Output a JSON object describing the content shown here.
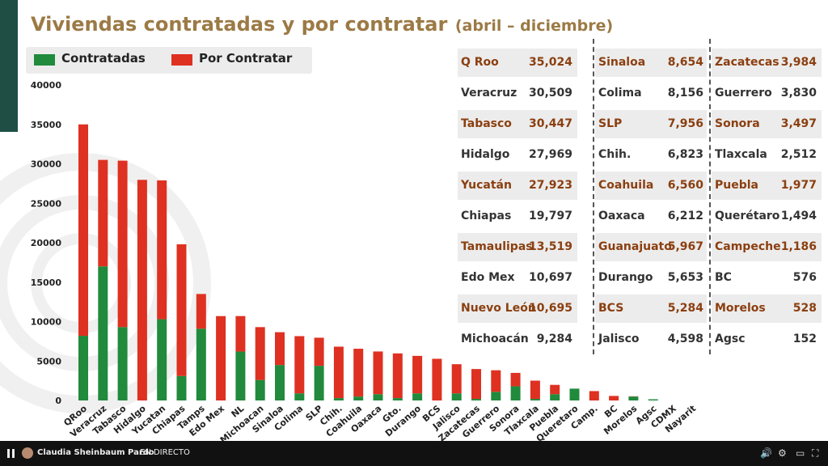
{
  "title": {
    "main": "Viviendas contratadas y por contratar",
    "sub": "(abril – diciembre)"
  },
  "legend": [
    {
      "label": "Contratadas",
      "color": "#218a3c"
    },
    {
      "label": "Por Contratar",
      "color": "#de3121"
    }
  ],
  "chart_data": {
    "type": "bar",
    "stacked": true,
    "ylim": [
      0,
      40000
    ],
    "yticks": [
      0,
      5000,
      10000,
      15000,
      20000,
      25000,
      30000,
      35000,
      40000
    ],
    "categories": [
      "QRoo",
      "Veracruz",
      "Tabasco",
      "Hidalgo",
      "Yucatan",
      "Chiapas",
      "Tamps",
      "Edo Mex",
      "NL",
      "Michoacan",
      "Sinaloa",
      "Colima",
      "SLP",
      "Chih.",
      "Coahuila",
      "Oaxaca",
      "Gto.",
      "Durango",
      "BCS",
      "Jalisco",
      "Zacatecas",
      "Guerrero",
      "Sonora",
      "Tlaxcala",
      "Puebla",
      "Queretaro",
      "Camp.",
      "BC",
      "Morelos",
      "Agsc",
      "CDMX",
      "Nayarit"
    ],
    "series": [
      {
        "name": "Contratadas",
        "color": "#218a3c",
        "values": [
          8200,
          17000,
          9300,
          0,
          10300,
          3100,
          9100,
          0,
          6200,
          2600,
          4500,
          900,
          4400,
          300,
          500,
          800,
          300,
          900,
          0,
          900,
          200,
          1100,
          1800,
          200,
          800,
          1500,
          0,
          0,
          500,
          150,
          0,
          0
        ]
      },
      {
        "name": "Por Contratar",
        "color": "#de3121",
        "values": [
          26800,
          13500,
          21100,
          27969,
          17600,
          16700,
          4400,
          10697,
          4500,
          6700,
          4154,
          7256,
          3556,
          6523,
          6060,
          5412,
          5667,
          4753,
          5284,
          3698,
          3784,
          2730,
          1697,
          2312,
          1177,
          0,
          1186,
          576,
          28,
          0,
          0,
          0
        ]
      }
    ]
  },
  "table": {
    "columns": [
      [
        {
          "state": "Q Roo",
          "value": "35,024",
          "highlight": true
        },
        {
          "state": "Veracruz",
          "value": "30,509",
          "highlight": false
        },
        {
          "state": "Tabasco",
          "value": "30,447",
          "highlight": true
        },
        {
          "state": "Hidalgo",
          "value": "27,969",
          "highlight": false
        },
        {
          "state": "Yucatán",
          "value": "27,923",
          "highlight": true
        },
        {
          "state": "Chiapas",
          "value": "19,797",
          "highlight": false
        },
        {
          "state": "Tamaulipas",
          "value": "13,519",
          "highlight": true
        },
        {
          "state": "Edo Mex",
          "value": "10,697",
          "highlight": false
        },
        {
          "state": "Nuevo León",
          "value": "10,695",
          "highlight": true
        },
        {
          "state": "Michoacán",
          "value": "9,284",
          "highlight": false
        }
      ],
      [
        {
          "state": "Sinaloa",
          "value": "8,654",
          "highlight": true
        },
        {
          "state": "Colima",
          "value": "8,156",
          "highlight": false
        },
        {
          "state": "SLP",
          "value": "7,956",
          "highlight": true
        },
        {
          "state": "Chih.",
          "value": "6,823",
          "highlight": false
        },
        {
          "state": "Coahuila",
          "value": "6,560",
          "highlight": true
        },
        {
          "state": "Oaxaca",
          "value": "6,212",
          "highlight": false
        },
        {
          "state": "Guanajuato",
          "value": "5,967",
          "highlight": true
        },
        {
          "state": "Durango",
          "value": "5,653",
          "highlight": false
        },
        {
          "state": "BCS",
          "value": "5,284",
          "highlight": true
        },
        {
          "state": "Jalisco",
          "value": "4,598",
          "highlight": false
        }
      ],
      [
        {
          "state": "Zacatecas",
          "value": "3,984",
          "highlight": true
        },
        {
          "state": "Guerrero",
          "value": "3,830",
          "highlight": false
        },
        {
          "state": "Sonora",
          "value": "3,497",
          "highlight": true
        },
        {
          "state": "Tlaxcala",
          "value": "2,512",
          "highlight": false
        },
        {
          "state": "Puebla",
          "value": "1,977",
          "highlight": true
        },
        {
          "state": "Querétaro",
          "value": "1,494",
          "highlight": false
        },
        {
          "state": "Campeche",
          "value": "1,186",
          "highlight": true
        },
        {
          "state": "BC",
          "value": "576",
          "highlight": false
        },
        {
          "state": "Morelos",
          "value": "528",
          "highlight": true
        },
        {
          "state": "Agsc",
          "value": "152",
          "highlight": false
        }
      ]
    ],
    "highlight_color": "#8b3f10",
    "normal_color": "#333333"
  },
  "player": {
    "speaker": "Claudia Sheinbaum Pardo",
    "status": "EN DIRECTO"
  }
}
